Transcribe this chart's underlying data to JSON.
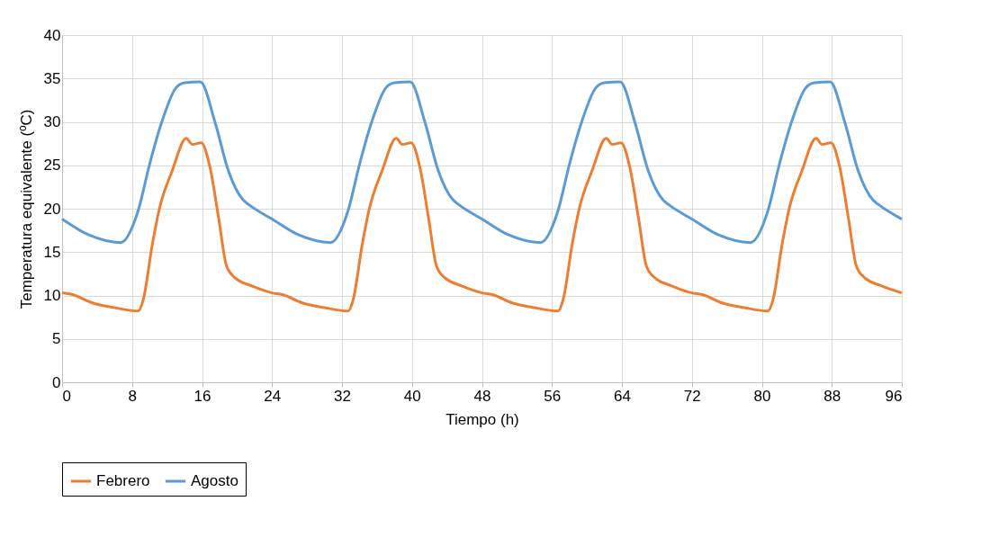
{
  "chart_data": {
    "type": "line",
    "xlabel": "Tiempo (h)",
    "ylabel": "Temperatura equivalente (ºC)",
    "xlim": [
      0,
      96
    ],
    "xticks": [
      0,
      8,
      16,
      24,
      32,
      40,
      48,
      56,
      64,
      72,
      80,
      88,
      96
    ],
    "ylim": [
      0,
      40
    ],
    "yticks": [
      0,
      5,
      10,
      15,
      20,
      25,
      30,
      35,
      40
    ],
    "grid": true,
    "legend": "bottom",
    "marker": "none",
    "line_style": "solid",
    "series": [
      {
        "name": "Febrero",
        "color": "#ed7d31",
        "x": [
          0,
          1.2,
          3.3,
          6,
          8.7,
          9.3,
          10.3,
          11.1,
          12.6,
          14.2,
          14.9,
          15.9,
          16.9,
          17.9,
          18.8,
          19.8,
          21.7,
          24,
          25.2,
          27.3,
          30,
          32.7,
          33.3,
          34.3,
          35.1,
          36.6,
          38.2,
          38.9,
          39.9,
          40.9,
          41.9,
          42.8,
          43.8,
          45.7,
          48,
          49.2,
          51.3,
          54,
          56.7,
          57.3,
          58.3,
          59.1,
          60.6,
          62.2,
          62.9,
          63.9,
          64.9,
          65.9,
          66.8,
          67.8,
          69.7,
          72,
          73.2,
          75.3,
          78,
          80.7,
          81.3,
          82.3,
          83.1,
          84.6,
          86.2,
          86.9,
          87.9,
          88.9,
          89.9,
          90.8,
          91.8,
          93.7,
          96
        ],
        "values": [
          10.3,
          10.1,
          9.2,
          8.6,
          8.2,
          9.6,
          15.8,
          19.9,
          24.4,
          28.1,
          27.4,
          27.6,
          24.8,
          18.9,
          13.4,
          12.0,
          11.1,
          10.3,
          10.1,
          9.2,
          8.6,
          8.2,
          9.6,
          15.8,
          19.9,
          24.4,
          28.1,
          27.4,
          27.6,
          24.8,
          18.9,
          13.4,
          12.0,
          11.1,
          10.3,
          10.1,
          9.2,
          8.6,
          8.2,
          9.6,
          15.8,
          19.9,
          24.4,
          28.1,
          27.4,
          27.6,
          24.8,
          18.9,
          13.4,
          12.0,
          11.1,
          10.3,
          10.1,
          9.2,
          8.6,
          8.2,
          9.6,
          15.8,
          19.9,
          24.4,
          28.1,
          27.4,
          27.6,
          24.8,
          18.9,
          13.4,
          12.0,
          11.1,
          10.3
        ]
      },
      {
        "name": "Agosto",
        "color": "#5b9bd5",
        "x": [
          0,
          3,
          6.7,
          8.7,
          10,
          11.5,
          13,
          14,
          15.8,
          17.5,
          19,
          20.7,
          21.3,
          24,
          27,
          30.7,
          32.7,
          34,
          35.5,
          37,
          38,
          39.8,
          41.5,
          43,
          44.7,
          45.3,
          48,
          51,
          54.7,
          56.7,
          58,
          59.5,
          61,
          62,
          63.8,
          65.5,
          67,
          68.7,
          69.3,
          72,
          75,
          78.7,
          80.7,
          82,
          83.5,
          85,
          86,
          87.8,
          89.5,
          91,
          92.7,
          93.3,
          96
        ],
        "values": [
          18.8,
          17.0,
          16.1,
          19.8,
          25.1,
          30.3,
          33.9,
          34.5,
          34.6,
          29.9,
          24.4,
          21.0,
          20.5,
          18.8,
          17.0,
          16.1,
          19.8,
          25.1,
          30.3,
          33.9,
          34.5,
          34.6,
          29.9,
          24.4,
          21.0,
          20.5,
          18.8,
          17.0,
          16.1,
          19.8,
          25.1,
          30.3,
          33.9,
          34.5,
          34.6,
          29.9,
          24.4,
          21.0,
          20.5,
          18.8,
          17.0,
          16.1,
          19.8,
          25.1,
          30.3,
          33.9,
          34.5,
          34.6,
          29.9,
          24.4,
          21.0,
          20.5,
          18.8
        ]
      }
    ]
  }
}
